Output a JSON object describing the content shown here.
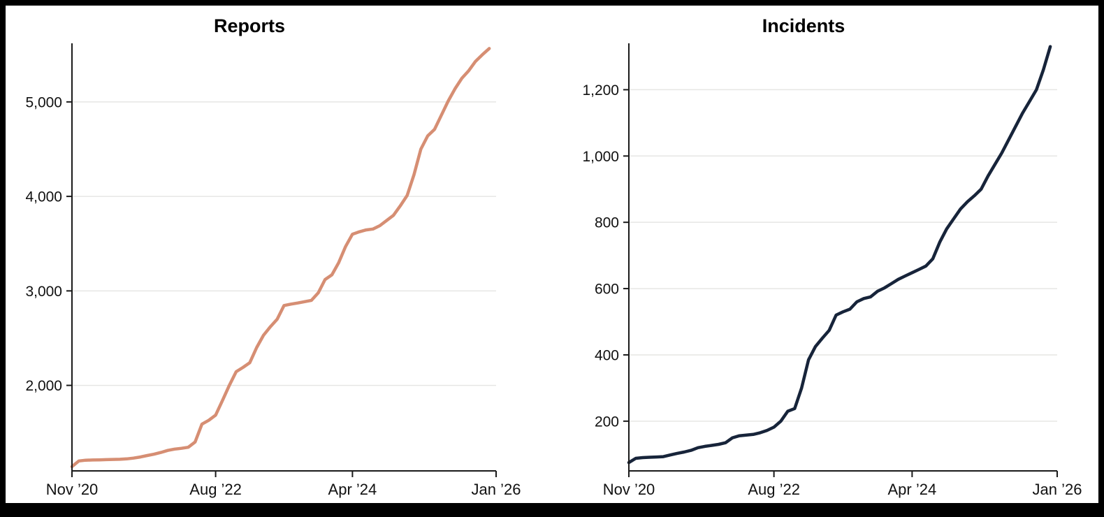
{
  "page": {
    "frame_color": "#000000",
    "panel_background": "#ffffff"
  },
  "styles": {
    "axis_color": "#1a1a1a",
    "grid_color": "#e6e6e4",
    "tick_text_color": "#111111",
    "tick_font_px": 21
  },
  "chart_data": [
    {
      "type": "line",
      "title": "Reports",
      "line_color": "#D68E73",
      "line_width": 4.5,
      "legend": "none",
      "x": {
        "unit": "months since Nov 2020",
        "domain": [
          0,
          62
        ],
        "tick_positions": [
          0,
          21,
          41,
          62
        ],
        "tick_labels": [
          "Nov ’20",
          "Aug ’22",
          "Apr ’24",
          "Jan ’26"
        ]
      },
      "y": {
        "range": [
          1095,
          5620
        ],
        "ticks": [
          2000,
          3000,
          4000,
          5000
        ],
        "grid": true
      },
      "values_monthly": [
        1140,
        1200,
        1208,
        1210,
        1212,
        1214,
        1216,
        1218,
        1222,
        1230,
        1242,
        1258,
        1272,
        1290,
        1312,
        1326,
        1334,
        1345,
        1400,
        1590,
        1630,
        1685,
        1840,
        2000,
        2145,
        2190,
        2240,
        2400,
        2530,
        2620,
        2700,
        2845,
        2860,
        2872,
        2886,
        2900,
        2980,
        3120,
        3170,
        3300,
        3470,
        3600,
        3625,
        3645,
        3655,
        3690,
        3745,
        3800,
        3900,
        4010,
        4230,
        4500,
        4640,
        4710,
        4860,
        5010,
        5140,
        5250,
        5330,
        5430,
        5500,
        5565
      ]
    },
    {
      "type": "line",
      "title": "Incidents",
      "line_color": "#17243A",
      "line_width": 4.5,
      "legend": "none",
      "x": {
        "unit": "months since Nov 2020",
        "domain": [
          0,
          62
        ],
        "tick_positions": [
          0,
          21,
          41,
          62
        ],
        "tick_labels": [
          "Nov ’20",
          "Aug ’22",
          "Apr ’24",
          "Jan ’26"
        ]
      },
      "y": {
        "range": [
          50,
          1340
        ],
        "ticks": [
          200,
          400,
          600,
          800,
          1000,
          1200
        ],
        "grid": true
      },
      "values_monthly": [
        75,
        88,
        90,
        91,
        92,
        93,
        98,
        103,
        107,
        112,
        120,
        124,
        127,
        130,
        135,
        150,
        156,
        158,
        160,
        165,
        172,
        182,
        200,
        230,
        238,
        300,
        385,
        425,
        450,
        474,
        520,
        530,
        538,
        560,
        570,
        575,
        592,
        602,
        615,
        628,
        638,
        648,
        658,
        668,
        690,
        740,
        780,
        810,
        840,
        862,
        880,
        900,
        940,
        975,
        1010,
        1050,
        1090,
        1130,
        1165,
        1200,
        1260,
        1330
      ]
    }
  ]
}
